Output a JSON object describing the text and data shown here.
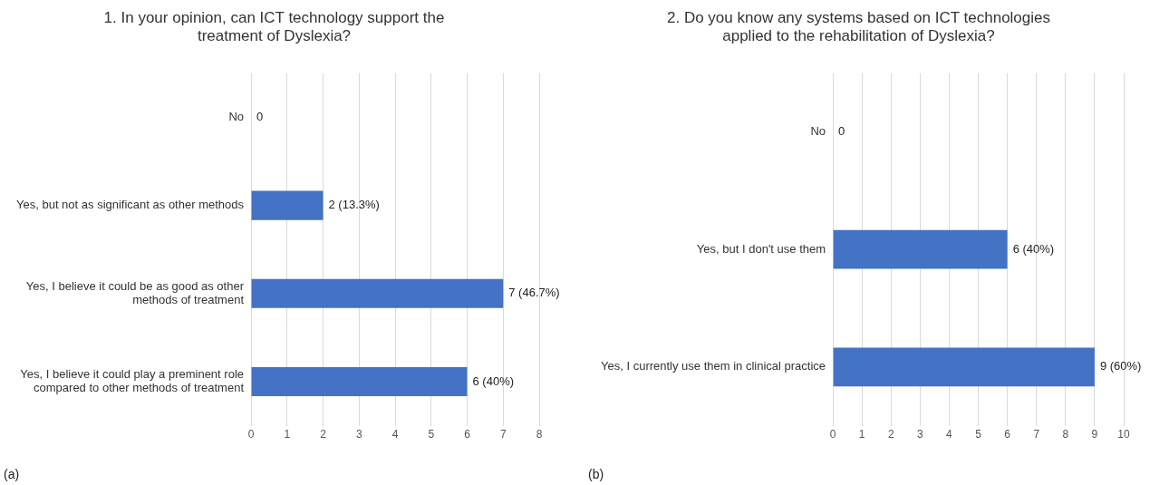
{
  "chart_data": [
    {
      "type": "bar",
      "orientation": "horizontal",
      "title": "1. In your opinion, can ICT technology support the treatment of Dyslexia?",
      "categories": [
        "No",
        "Yes, but not as significant as other methods",
        "Yes, I believe it could be as good as other methods of treatment",
        "Yes, I believe it could play a preminent role compared to other methods of treatment"
      ],
      "values": [
        0,
        2,
        7,
        6
      ],
      "color": "#4472c4",
      "value_labels": [
        "0",
        "2 (13.3%)",
        "7 (46.7%)",
        "6 (40%)"
      ],
      "xlim": [
        0,
        8
      ],
      "xticks": [
        0,
        1,
        2,
        3,
        4,
        5,
        6,
        7,
        8
      ],
      "grid": "x",
      "legend": false,
      "annotations": [
        "(a)"
      ]
    },
    {
      "type": "bar",
      "orientation": "horizontal",
      "title": "2. Do you know any systems based on ICT technologies applied to the rehabilitation of Dyslexia?",
      "categories": [
        "No",
        "Yes, but I don't use them",
        "Yes, I currently use them in clinical practice"
      ],
      "values": [
        0,
        6,
        9
      ],
      "color": "#4472c4",
      "value_labels": [
        "0",
        "6 (40%)",
        "9 (60%)"
      ],
      "xlim": [
        0,
        10
      ],
      "xticks": [
        0,
        1,
        2,
        3,
        4,
        5,
        6,
        7,
        8,
        9,
        10
      ],
      "grid": "x",
      "legend": false,
      "annotations": [
        "(b)"
      ]
    }
  ]
}
